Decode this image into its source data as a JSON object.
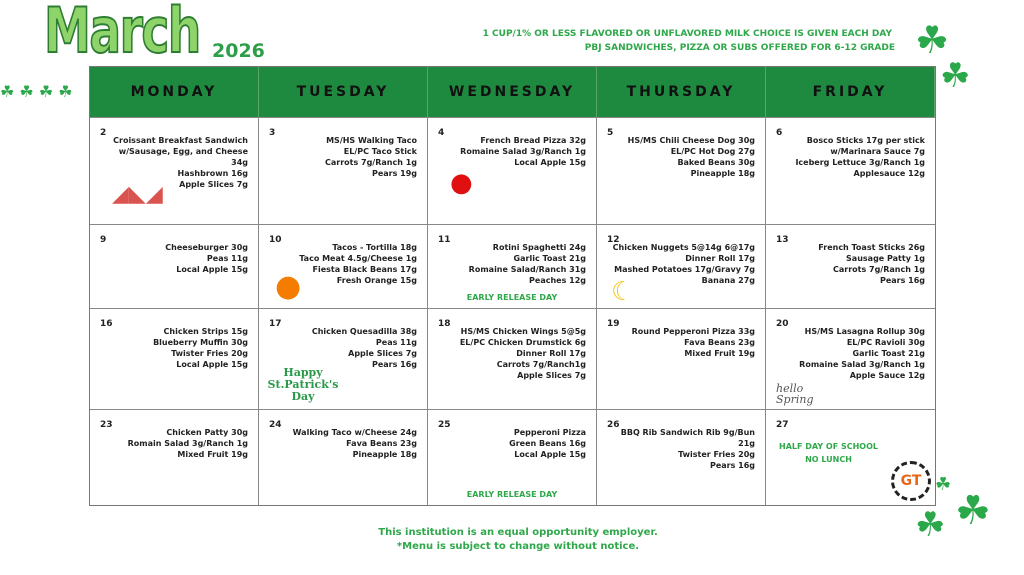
{
  "header": {
    "month": "March",
    "year": "2026"
  },
  "notes": [
    "1 CUP/1% OR LESS FLAVORED OR UNFLAVORED MILK CHOICE IS GIVEN EACH DAY",
    "PBJ SANDWICHES, PIZZA OR SUBS OFFERED FOR 6-12 GRADE"
  ],
  "weekdays": [
    "MONDAY",
    "TUESDAY",
    "WEDNESDAY",
    "THURSDAY",
    "FRIDAY"
  ],
  "colors": {
    "accent": "#1e8a3f",
    "note_green": "#2ea84a"
  },
  "days": [
    {
      "day": "2",
      "items": [
        "Croissant Breakfast Sandwich",
        "w/Sausage, Egg, and Cheese 34g",
        "Hashbrown 16g",
        "Apple Slices 7g"
      ],
      "icon": "apple-slices-icon"
    },
    {
      "day": "3",
      "items": [
        "MS/HS Walking Taco",
        "EL/PC Taco Stick",
        "Carrots 7g/Ranch 1g",
        "Pears 19g"
      ]
    },
    {
      "day": "4",
      "items": [
        "French Bread Pizza 32g",
        "Romaine Salad 3g/Ranch 1g",
        "Local Apple 15g"
      ],
      "icon": "apple-icon"
    },
    {
      "day": "5",
      "items": [
        "HS/MS Chili Cheese Dog 30g",
        "EL/PC Hot Dog 27g",
        "Baked Beans 30g",
        "Pineapple 18g"
      ]
    },
    {
      "day": "6",
      "items": [
        "Bosco Sticks 17g per stick",
        "w/Marinara Sauce 7g",
        "Iceberg Lettuce 3g/Ranch 1g",
        "Applesauce 12g"
      ]
    },
    {
      "day": "9",
      "items": [
        "Cheeseburger 30g",
        "Peas 11g",
        "Local Apple 15g"
      ]
    },
    {
      "day": "10",
      "items": [
        "Tacos - Tortilla 18g",
        "Taco Meat 4.5g/Cheese 1g",
        "Fiesta Black Beans 17g",
        "Fresh Orange 15g"
      ],
      "icon": "orange-icon"
    },
    {
      "day": "11",
      "items": [
        "Rotini Spaghetti 24g",
        "Garlic Toast 21g",
        "Romaine Salad/Ranch 31g",
        "Peaches 12g"
      ],
      "note": "EARLY RELEASE DAY"
    },
    {
      "day": "12",
      "items": [
        "Chicken Nuggets 5@14g 6@17g",
        "Dinner Roll 17g",
        "Mashed Potatoes 17g/Gravy 7g",
        "Banana 27g"
      ],
      "icon": "banana-icon"
    },
    {
      "day": "13",
      "items": [
        "French Toast Sticks 26g",
        "Sausage Patty 1g",
        "Carrots 7g/Ranch 1g",
        "Pears 16g"
      ]
    },
    {
      "day": "16",
      "items": [
        "Chicken Strips 15g",
        "Blueberry Muffin 30g",
        "Twister Fries 20g",
        "Local Apple 15g"
      ]
    },
    {
      "day": "17",
      "items": [
        "Chicken Quesadilla 38g",
        "Peas 11g",
        "Apple Slices 7g",
        "Pears 16g"
      ],
      "icon": "st-patricks-day-icon",
      "icon_text": [
        "Happy",
        "St.Patrick's",
        "Day"
      ]
    },
    {
      "day": "18",
      "items": [
        "HS/MS Chicken Wings 5@5g",
        "EL/PC Chicken Drumstick 6g",
        "Dinner Roll 17g",
        "Carrots 7g/Ranch1g",
        "Apple Slices 7g"
      ]
    },
    {
      "day": "19",
      "items": [
        "Round Pepperoni Pizza 33g",
        "Fava Beans 23g",
        "Mixed Fruit 19g"
      ]
    },
    {
      "day": "20",
      "items": [
        "HS/MS Lasagna Rollup 30g",
        "EL/PC Ravioli 30g",
        "Garlic Toast 21g",
        "Romaine Salad 3g/Ranch 1g",
        "Apple Sauce 12g"
      ],
      "icon": "hello-spring-icon",
      "icon_text": [
        "hello",
        "Spring"
      ]
    },
    {
      "day": "23",
      "items": [
        "Chicken Patty 30g",
        "Romain Salad 3g/Ranch 1g",
        "Mixed Fruit 19g"
      ]
    },
    {
      "day": "24",
      "items": [
        "Walking Taco w/Cheese 24g",
        "Fava Beans 23g",
        "Pineapple 18g"
      ]
    },
    {
      "day": "25",
      "items": [
        "Pepperoni Pizza",
        "Green Beans 16g",
        "Local Apple 15g"
      ],
      "note": "EARLY RELEASE DAY"
    },
    {
      "day": "26",
      "items": [
        "BBQ Rib Sandwich Rib 9g/Bun 21g",
        "Twister Fries 20g",
        "Pears 16g"
      ]
    },
    {
      "day": "27",
      "items": [],
      "note_lines": [
        "HALF DAY OF SCHOOL",
        "NO LUNCH"
      ],
      "icon": "school-logo-icon",
      "icon_text": [
        "GT"
      ]
    }
  ],
  "footer": [
    "This institution is an equal opportunity employer.",
    "*Menu is subject to change without notice."
  ]
}
